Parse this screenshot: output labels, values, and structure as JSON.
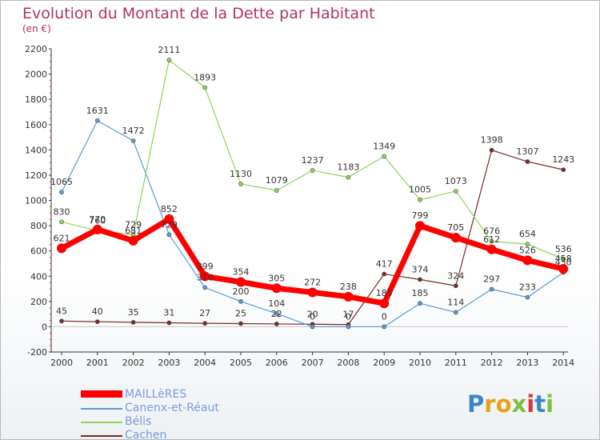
{
  "title": "Evolution du Montant de la Dette par Habitant",
  "subtitle": "(en €)",
  "brand": {
    "letters": [
      {
        "ch": "P",
        "color": "#3a87c8"
      },
      {
        "ch": "r",
        "color": "#e8a21e"
      },
      {
        "ch": "o",
        "color": "#e8a21e"
      },
      {
        "ch": "x",
        "color": "#7fbf3f"
      },
      {
        "ch": "i",
        "color": "#d83a3a"
      },
      {
        "ch": "t",
        "color": "#3a87c8"
      },
      {
        "ch": "i",
        "color": "#7fbf3f"
      }
    ]
  },
  "chart_data": {
    "type": "line",
    "title": "Evolution du Montant de la Dette par Habitant",
    "subtitle": "(en €)",
    "categories": [
      "2000",
      "2001",
      "2002",
      "2003",
      "2004",
      "2005",
      "2006",
      "2007",
      "2008",
      "2009",
      "2010",
      "2011",
      "2012",
      "2013",
      "2014"
    ],
    "ylim": [
      -200,
      2200
    ],
    "yticks": [
      -200,
      0,
      200,
      400,
      600,
      800,
      1000,
      1200,
      1400,
      1600,
      1800,
      2000,
      2200
    ],
    "grid": false,
    "legend_position": "bottom-left",
    "series": [
      {
        "name": "MAILLèRES",
        "color": "#ff0000",
        "values": [
          621,
          770,
          681,
          852,
          399,
          354,
          305,
          272,
          238,
          185,
          799,
          705,
          612,
          526,
          458
        ],
        "labels": [
          "621",
          "770",
          "681",
          "852",
          "399",
          "354",
          "305",
          "272",
          "238",
          "185",
          "799",
          "705",
          "612",
          "526",
          "458"
        ]
      },
      {
        "name": "Canenx-et-Réaut",
        "color": "#5a9ad8",
        "values": [
          1065,
          1631,
          1472,
          729,
          310,
          200,
          104,
          0,
          0,
          0,
          185,
          114,
          297,
          233,
          430
        ],
        "labels": [
          "1065",
          "1631",
          "1472",
          "729",
          "310",
          "200",
          "104",
          "0",
          "0",
          "0",
          "185",
          "114",
          "297",
          "233",
          "430"
        ]
      },
      {
        "name": "Bélis",
        "color": "#8ed35a",
        "values": [
          830,
          760,
          729,
          2111,
          1893,
          1130,
          1079,
          1237,
          1183,
          1349,
          1005,
          1073,
          676,
          654,
          536
        ],
        "labels": [
          "830",
          "760",
          "729",
          "2111",
          "1893",
          "1130",
          "1079",
          "1237",
          "1183",
          "1349",
          "1005",
          "1073",
          "676",
          "654",
          "536"
        ]
      },
      {
        "name": "Cachen",
        "color": "#7a2828",
        "values": [
          45,
          40,
          35,
          31,
          27,
          25,
          22,
          20,
          17,
          417,
          374,
          324,
          1398,
          1307,
          1243
        ],
        "labels": [
          "45",
          "40",
          "35",
          "31",
          "27",
          "25",
          "22",
          "20",
          "17",
          "417",
          "374",
          "324",
          "1398",
          "1307",
          "1243"
        ]
      }
    ]
  }
}
